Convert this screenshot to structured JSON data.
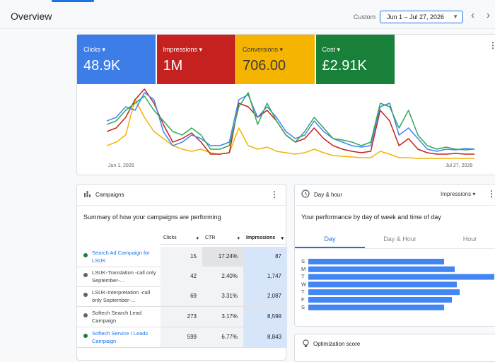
{
  "header": {
    "title": "Overview",
    "range_label": "Custom",
    "date_range": "Jun 1 – Jul 27, 2026"
  },
  "metrics": [
    {
      "label": "Clicks",
      "value": "48.9K",
      "color": "#3d7de8",
      "text_color": "#ffffff"
    },
    {
      "label": "Impressions",
      "value": "1M",
      "color": "#c5221f",
      "text_color": "#ffffff"
    },
    {
      "label": "Conversions",
      "value": "706.00",
      "color": "#f4b400",
      "text_color": "#3c3c3c"
    },
    {
      "label": "Cost",
      "value": "£2.91K",
      "color": "#188038",
      "text_color": "#ffffff"
    }
  ],
  "overview_chart": {
    "type": "line",
    "x_start": "Jun 1, 2026",
    "x_end": "Jul 27, 2026",
    "series": [
      {
        "color": "#f4b400",
        "values": [
          20,
          25,
          35,
          85,
          60,
          40,
          30,
          20,
          15,
          12,
          15,
          10,
          8,
          10,
          45,
          20,
          15,
          18,
          12,
          10,
          8,
          10,
          15,
          10,
          6,
          5,
          4,
          3,
          3,
          12,
          8,
          3,
          3,
          2,
          2,
          2,
          2,
          2,
          2,
          2
        ]
      },
      {
        "color": "#c5221f",
        "values": [
          40,
          45,
          60,
          85,
          100,
          80,
          50,
          25,
          30,
          38,
          25,
          8,
          8,
          10,
          80,
          75,
          60,
          70,
          55,
          35,
          25,
          30,
          45,
          30,
          20,
          15,
          12,
          10,
          12,
          70,
          55,
          20,
          30,
          15,
          10,
          8,
          8,
          9,
          8,
          8
        ]
      },
      {
        "color": "#4285f4",
        "values": [
          55,
          60,
          75,
          70,
          95,
          85,
          40,
          20,
          25,
          35,
          30,
          20,
          20,
          25,
          85,
          92,
          60,
          75,
          60,
          40,
          30,
          35,
          55,
          40,
          30,
          25,
          20,
          18,
          20,
          75,
          80,
          35,
          45,
          30,
          15,
          12,
          15,
          14,
          16,
          15
        ]
      },
      {
        "color": "#34a853",
        "values": [
          50,
          55,
          70,
          80,
          90,
          70,
          55,
          40,
          35,
          45,
          35,
          15,
          15,
          20,
          75,
          95,
          50,
          80,
          55,
          35,
          25,
          40,
          60,
          45,
          30,
          28,
          25,
          20,
          25,
          80,
          75,
          45,
          70,
          35,
          20,
          15,
          18,
          15,
          14,
          15
        ]
      }
    ]
  },
  "campaigns": {
    "title": "Campaigns",
    "subtitle": "Summary of how your campaigns are performing",
    "columns": [
      "Clicks",
      "CTR",
      "Impressions"
    ],
    "rows": [
      {
        "name": "Search Ad Campaign for LSUK",
        "dot_color": "#188038",
        "name_color": "#1a73e8",
        "cells": [
          "15",
          "17.24%",
          "87"
        ]
      },
      {
        "name": "LSUK-Translation -call only September-...",
        "dot_color": "#5f6368",
        "name_color": "#3c4043",
        "cells": [
          "42",
          "2.40%",
          "1,747"
        ]
      },
      {
        "name": "LSUK-Interpretation -call only September-...",
        "dot_color": "#5f6368",
        "name_color": "#3c4043",
        "cells": [
          "69",
          "3.31%",
          "2,087"
        ]
      },
      {
        "name": "Softech Search Lead Campaign",
        "dot_color": "#5f6368",
        "name_color": "#3c4043",
        "cells": [
          "273",
          "3.17%",
          "8,599"
        ]
      },
      {
        "name": "Softech Service I Leads Campaign",
        "dot_color": "#188038",
        "name_color": "#1a73e8",
        "cells": [
          "599",
          "6.77%",
          "8,843"
        ]
      }
    ]
  },
  "day_hour": {
    "title": "Day & hour",
    "metric": "Impressions",
    "subtitle": "Your performance by day of week and time of day",
    "tabs": [
      "Day",
      "Day & Hour",
      "Hour"
    ],
    "active_tab": 0,
    "type": "bar",
    "color": "#4285f4",
    "days": [
      "S",
      "M",
      "T",
      "W",
      "T",
      "F",
      "S"
    ],
    "values": [
      192,
      207,
      263,
      210,
      214,
      203,
      192
    ]
  },
  "optimization": {
    "title": "Optimization score"
  }
}
